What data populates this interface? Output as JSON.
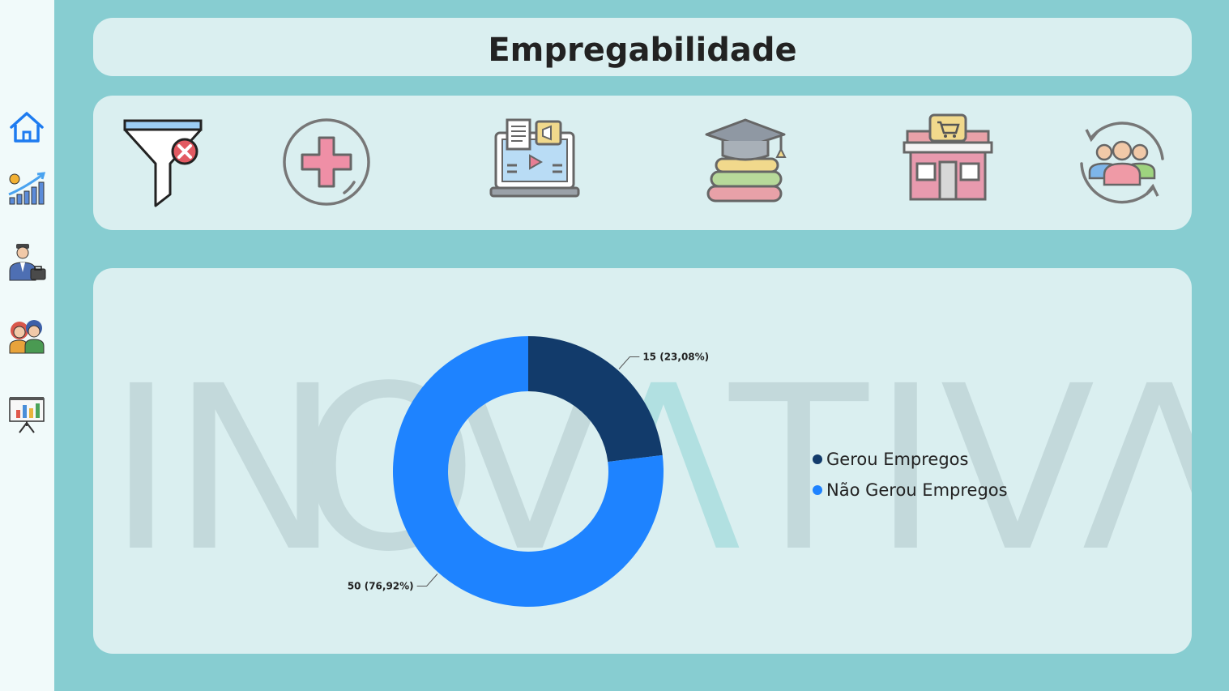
{
  "page": {
    "title": "Empregabilidade"
  },
  "sidebar": {
    "items": [
      {
        "icon": "home-icon"
      },
      {
        "icon": "growth-chart-icon"
      },
      {
        "icon": "businessman-icon"
      },
      {
        "icon": "young-people-icon"
      },
      {
        "icon": "presentation-board-icon"
      }
    ]
  },
  "toolbar": {
    "items": [
      {
        "icon": "clear-filter-icon"
      },
      {
        "icon": "health-plus-icon"
      },
      {
        "icon": "online-course-laptop-icon"
      },
      {
        "icon": "graduation-books-icon"
      },
      {
        "icon": "store-icon"
      },
      {
        "icon": "people-cycle-icon"
      }
    ]
  },
  "watermark": {
    "letters": [
      "I",
      "N",
      "O",
      "V",
      "Λ",
      "T",
      "I",
      "V",
      "Λ"
    ]
  },
  "chart_data": {
    "type": "pie",
    "donut": true,
    "categories": [
      "Gerou Empregos",
      "Não Gerou Empregos"
    ],
    "values": [
      15,
      50
    ],
    "data_labels": [
      "15 (23,08%)",
      "50 (76,92%)"
    ],
    "colors": [
      "#123b6b",
      "#1e83ff"
    ],
    "legend_position": "right"
  }
}
